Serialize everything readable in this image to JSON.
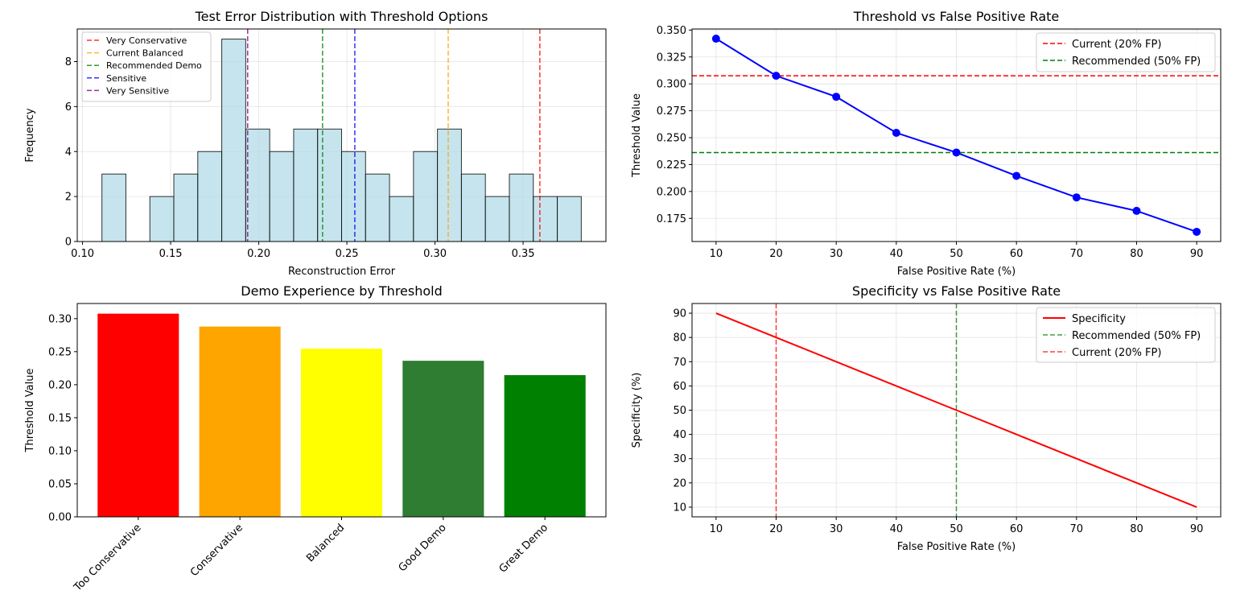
{
  "chart_data": [
    {
      "type": "bar",
      "title": "Test Error Distribution with Threshold Options",
      "xlabel": "Reconstruction Error",
      "ylabel": "Frequency",
      "xlim": [
        0.097,
        0.397
      ],
      "ylim": [
        0,
        9.45
      ],
      "x_ticks": [
        0.1,
        0.15,
        0.2,
        0.25,
        0.3,
        0.35
      ],
      "x_tick_labels": [
        "0.10",
        "0.15",
        "0.20",
        "0.25",
        "0.30",
        "0.35"
      ],
      "y_ticks": [
        0,
        2,
        4,
        6,
        8
      ],
      "y_tick_labels": [
        "0",
        "2",
        "4",
        "6",
        "8"
      ],
      "grid": true,
      "histogram": {
        "bin_start": 0.111,
        "bin_width": 0.0136,
        "counts": [
          3,
          0,
          2,
          3,
          4,
          9,
          5,
          4,
          5,
          5,
          4,
          3,
          2,
          4,
          5,
          3,
          2,
          3,
          2,
          2
        ],
        "color": "#add8e6"
      },
      "threshold_lines": [
        {
          "name": "Very Conservative",
          "x": 0.3595,
          "color": "#ff0000"
        },
        {
          "name": "Current Balanced",
          "x": 0.3075,
          "color": "#ffa500"
        },
        {
          "name": "Recommended Demo",
          "x": 0.2362,
          "color": "#008000"
        },
        {
          "name": "Sensitive",
          "x": 0.2545,
          "color": "#0000ff"
        },
        {
          "name": "Very Sensitive",
          "x": 0.1937,
          "color": "#800080"
        }
      ],
      "legend_position": "upper-left"
    },
    {
      "type": "line",
      "title": "Threshold vs False Positive Rate",
      "xlabel": "False Positive Rate (%)",
      "ylabel": "Threshold Value",
      "x": [
        10,
        20,
        30,
        40,
        50,
        60,
        70,
        80,
        90
      ],
      "y": [
        0.342,
        0.3075,
        0.288,
        0.2545,
        0.2362,
        0.2145,
        0.1945,
        0.182,
        0.1625
      ],
      "xlim": [
        6,
        94
      ],
      "ylim": [
        0.1535,
        0.351
      ],
      "x_ticks": [
        10,
        20,
        30,
        40,
        50,
        60,
        70,
        80,
        90
      ],
      "x_tick_labels": [
        "10",
        "20",
        "30",
        "40",
        "50",
        "60",
        "70",
        "80",
        "90"
      ],
      "y_ticks": [
        0.175,
        0.2,
        0.225,
        0.25,
        0.275,
        0.3,
        0.325,
        0.35
      ],
      "y_tick_labels": [
        "0.175",
        "0.200",
        "0.225",
        "0.250",
        "0.275",
        "0.300",
        "0.325",
        "0.350"
      ],
      "grid": true,
      "series_color": "#0000ff",
      "reference_lines": [
        {
          "name": "Current (20% FP)",
          "y": 0.3075,
          "color": "#ff0000"
        },
        {
          "name": "Recommended (50% FP)",
          "y": 0.2362,
          "color": "#008000"
        }
      ],
      "legend_position": "upper-right"
    },
    {
      "type": "bar",
      "title": "Demo Experience by Threshold",
      "xlabel": "",
      "ylabel": "Threshold Value",
      "categories": [
        "Too Conservative",
        "Conservative",
        "Balanced",
        "Good Demo",
        "Great Demo"
      ],
      "values": [
        0.3075,
        0.288,
        0.2545,
        0.2362,
        0.2145
      ],
      "colors": [
        "#ff0000",
        "#ffa500",
        "#ffff00",
        "#2e7d32",
        "#008000"
      ],
      "ylim": [
        0,
        0.3229
      ],
      "y_ticks": [
        0,
        0.05,
        0.1,
        0.15,
        0.2,
        0.25,
        0.3
      ],
      "y_tick_labels": [
        "0.00",
        "0.05",
        "0.10",
        "0.15",
        "0.20",
        "0.25",
        "0.30"
      ],
      "grid": false
    },
    {
      "type": "line",
      "title": "Specificity vs False Positive Rate",
      "xlabel": "False Positive Rate (%)",
      "ylabel": "Specificity (%)",
      "series": [
        {
          "name": "Specificity",
          "x": [
            10,
            20,
            30,
            40,
            50,
            60,
            70,
            80,
            90
          ],
          "values": [
            90,
            80,
            70,
            60,
            50,
            40,
            30,
            20,
            10
          ],
          "color": "#ff0000"
        }
      ],
      "xlim": [
        6,
        94
      ],
      "ylim": [
        6,
        94
      ],
      "x_ticks": [
        10,
        20,
        30,
        40,
        50,
        60,
        70,
        80,
        90
      ],
      "x_tick_labels": [
        "10",
        "20",
        "30",
        "40",
        "50",
        "60",
        "70",
        "80",
        "90"
      ],
      "y_ticks": [
        10,
        20,
        30,
        40,
        50,
        60,
        70,
        80,
        90
      ],
      "y_tick_labels": [
        "10",
        "20",
        "30",
        "40",
        "50",
        "60",
        "70",
        "80",
        "90"
      ],
      "grid": true,
      "reference_lines": [
        {
          "name": "Recommended (50% FP)",
          "x": 50,
          "color": "#008000"
        },
        {
          "name": "Current (20% FP)",
          "x": 20,
          "color": "#ff0000"
        }
      ],
      "legend_position": "upper-right"
    }
  ]
}
